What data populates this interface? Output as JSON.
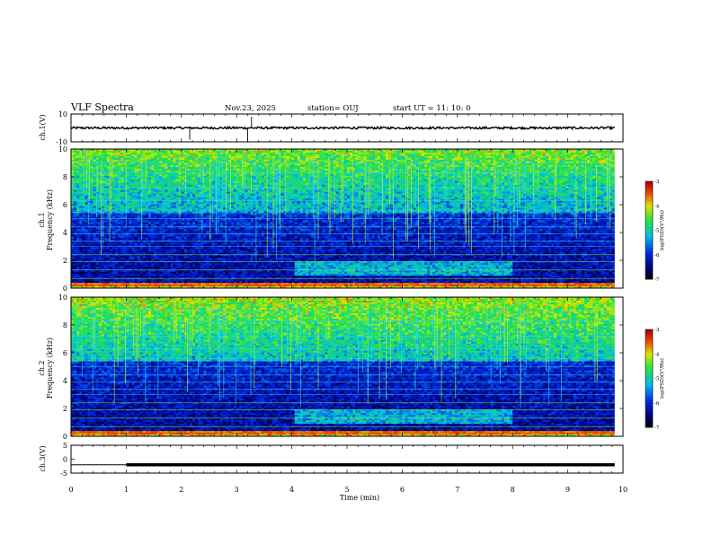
{
  "header": {
    "title": "VLF Spectra",
    "date": "Nov.23, 2025",
    "station": "station= OUJ",
    "start": "start  UT =   11: 10: 0"
  },
  "chart_data": [
    {
      "id": "ch1-waveform",
      "type": "line",
      "ylabel": "ch.1(V)",
      "yticks": [
        "10",
        "-10"
      ],
      "ylim": [
        -10,
        10
      ],
      "xlim": [
        0,
        10
      ],
      "baseline": 0,
      "data_end_min": 9.85,
      "spikes": [
        {
          "x": 2.15,
          "y": -8.5
        },
        {
          "x": 3.2,
          "y": -10
        },
        {
          "x": 3.27,
          "y": 8
        }
      ]
    },
    {
      "id": "ch1-spectrogram",
      "type": "heatmap",
      "ylabel": "ch.1\nFrequency (kHz)",
      "ylim": [
        0,
        10
      ],
      "xlim": [
        0,
        10
      ],
      "yticks": [
        "0",
        "2",
        "4",
        "6",
        "8",
        "10"
      ],
      "colorbar": {
        "min": -7,
        "max": -3,
        "ticks": [
          "-3",
          "-4",
          "-5",
          "-6",
          "-7"
        ],
        "label": "log(PSD)(V²/Hz)"
      }
    },
    {
      "id": "ch2-spectrogram",
      "type": "heatmap",
      "ylabel": "ch.2\nFrequency (kHz)",
      "ylim": [
        0,
        10
      ],
      "xlim": [
        0,
        10
      ],
      "yticks": [
        "0",
        "2",
        "4",
        "6",
        "8",
        "10"
      ],
      "colorbar": {
        "min": -7,
        "max": -3,
        "ticks": [
          "-3",
          "-4",
          "-5",
          "-6",
          "-7"
        ],
        "label": "log(PSD)(V²/Hz)"
      }
    },
    {
      "id": "ch3-waveform",
      "type": "line",
      "ylabel": "ch.3(V)",
      "yticks": [
        "5",
        "0",
        "-5"
      ],
      "ylim": [
        -5,
        5
      ],
      "xlim": [
        0,
        10
      ],
      "baseline": -2,
      "thick_start_min": 1.0,
      "data_end_min": 9.85,
      "xticks": [
        "0",
        "1",
        "2",
        "3",
        "4",
        "5",
        "6",
        "7",
        "8",
        "9",
        "10"
      ],
      "xlabel": "Time  (min)"
    }
  ]
}
